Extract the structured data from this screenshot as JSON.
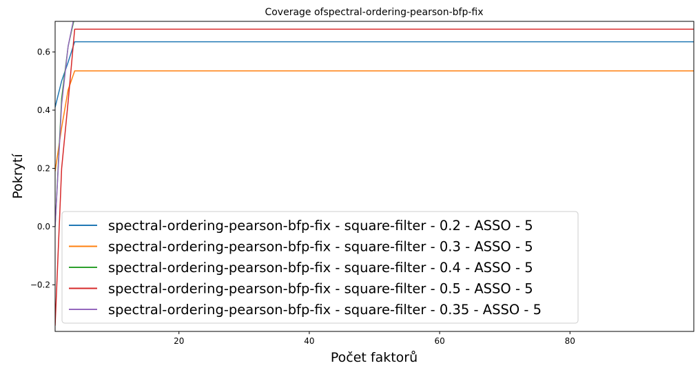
{
  "chart_data": {
    "type": "line",
    "title": "Coverage ofspectral-ordering-pearson-bfp-fix",
    "xlabel": "Počet faktorů",
    "ylabel": "Pokrytí",
    "xlim": [
      1,
      99
    ],
    "ylim": [
      -0.36,
      0.705
    ],
    "xticks": [
      20,
      40,
      60,
      80
    ],
    "yticks": [
      -0.2,
      0.0,
      0.2,
      0.4,
      0.6
    ],
    "ytick_labels": [
      "−0.2",
      "0.0",
      "0.2",
      "0.4",
      "0.6"
    ],
    "grid": false,
    "legend_position": "lower-left",
    "series": [
      {
        "name": "spectral-ordering-pearson-bfp-fix - square-filter - 0.2 - ASSO - 5",
        "color": "#1f77b4",
        "x": [
          1,
          2,
          3,
          4,
          99
        ],
        "y": [
          0.41,
          0.5,
          0.565,
          0.635,
          0.635
        ]
      },
      {
        "name": "spectral-ordering-pearson-bfp-fix - square-filter - 0.3 - ASSO - 5",
        "color": "#ff7f0e",
        "x": [
          1,
          2,
          3,
          4,
          99
        ],
        "y": [
          0.19,
          0.34,
          0.47,
          0.535,
          0.535
        ]
      },
      {
        "name": "spectral-ordering-pearson-bfp-fix - square-filter - 0.4 - ASSO - 5",
        "color": "#2ca02c",
        "x": [
          1,
          2,
          3,
          4,
          99
        ],
        "y": [
          0.0,
          0.44,
          0.62,
          0.72,
          0.72
        ]
      },
      {
        "name": "spectral-ordering-pearson-bfp-fix - square-filter - 0.5 - ASSO - 5",
        "color": "#d62728",
        "x": [
          1,
          2,
          3,
          4,
          99
        ],
        "y": [
          -0.34,
          0.2,
          0.43,
          0.678,
          0.678
        ]
      },
      {
        "name": "spectral-ordering-pearson-bfp-fix - square-filter - 0.35 - ASSO - 5",
        "color": "#9467bd",
        "x": [
          1,
          2,
          3,
          4,
          99
        ],
        "y": [
          0.0,
          0.42,
          0.62,
          0.73,
          0.73
        ]
      }
    ]
  }
}
